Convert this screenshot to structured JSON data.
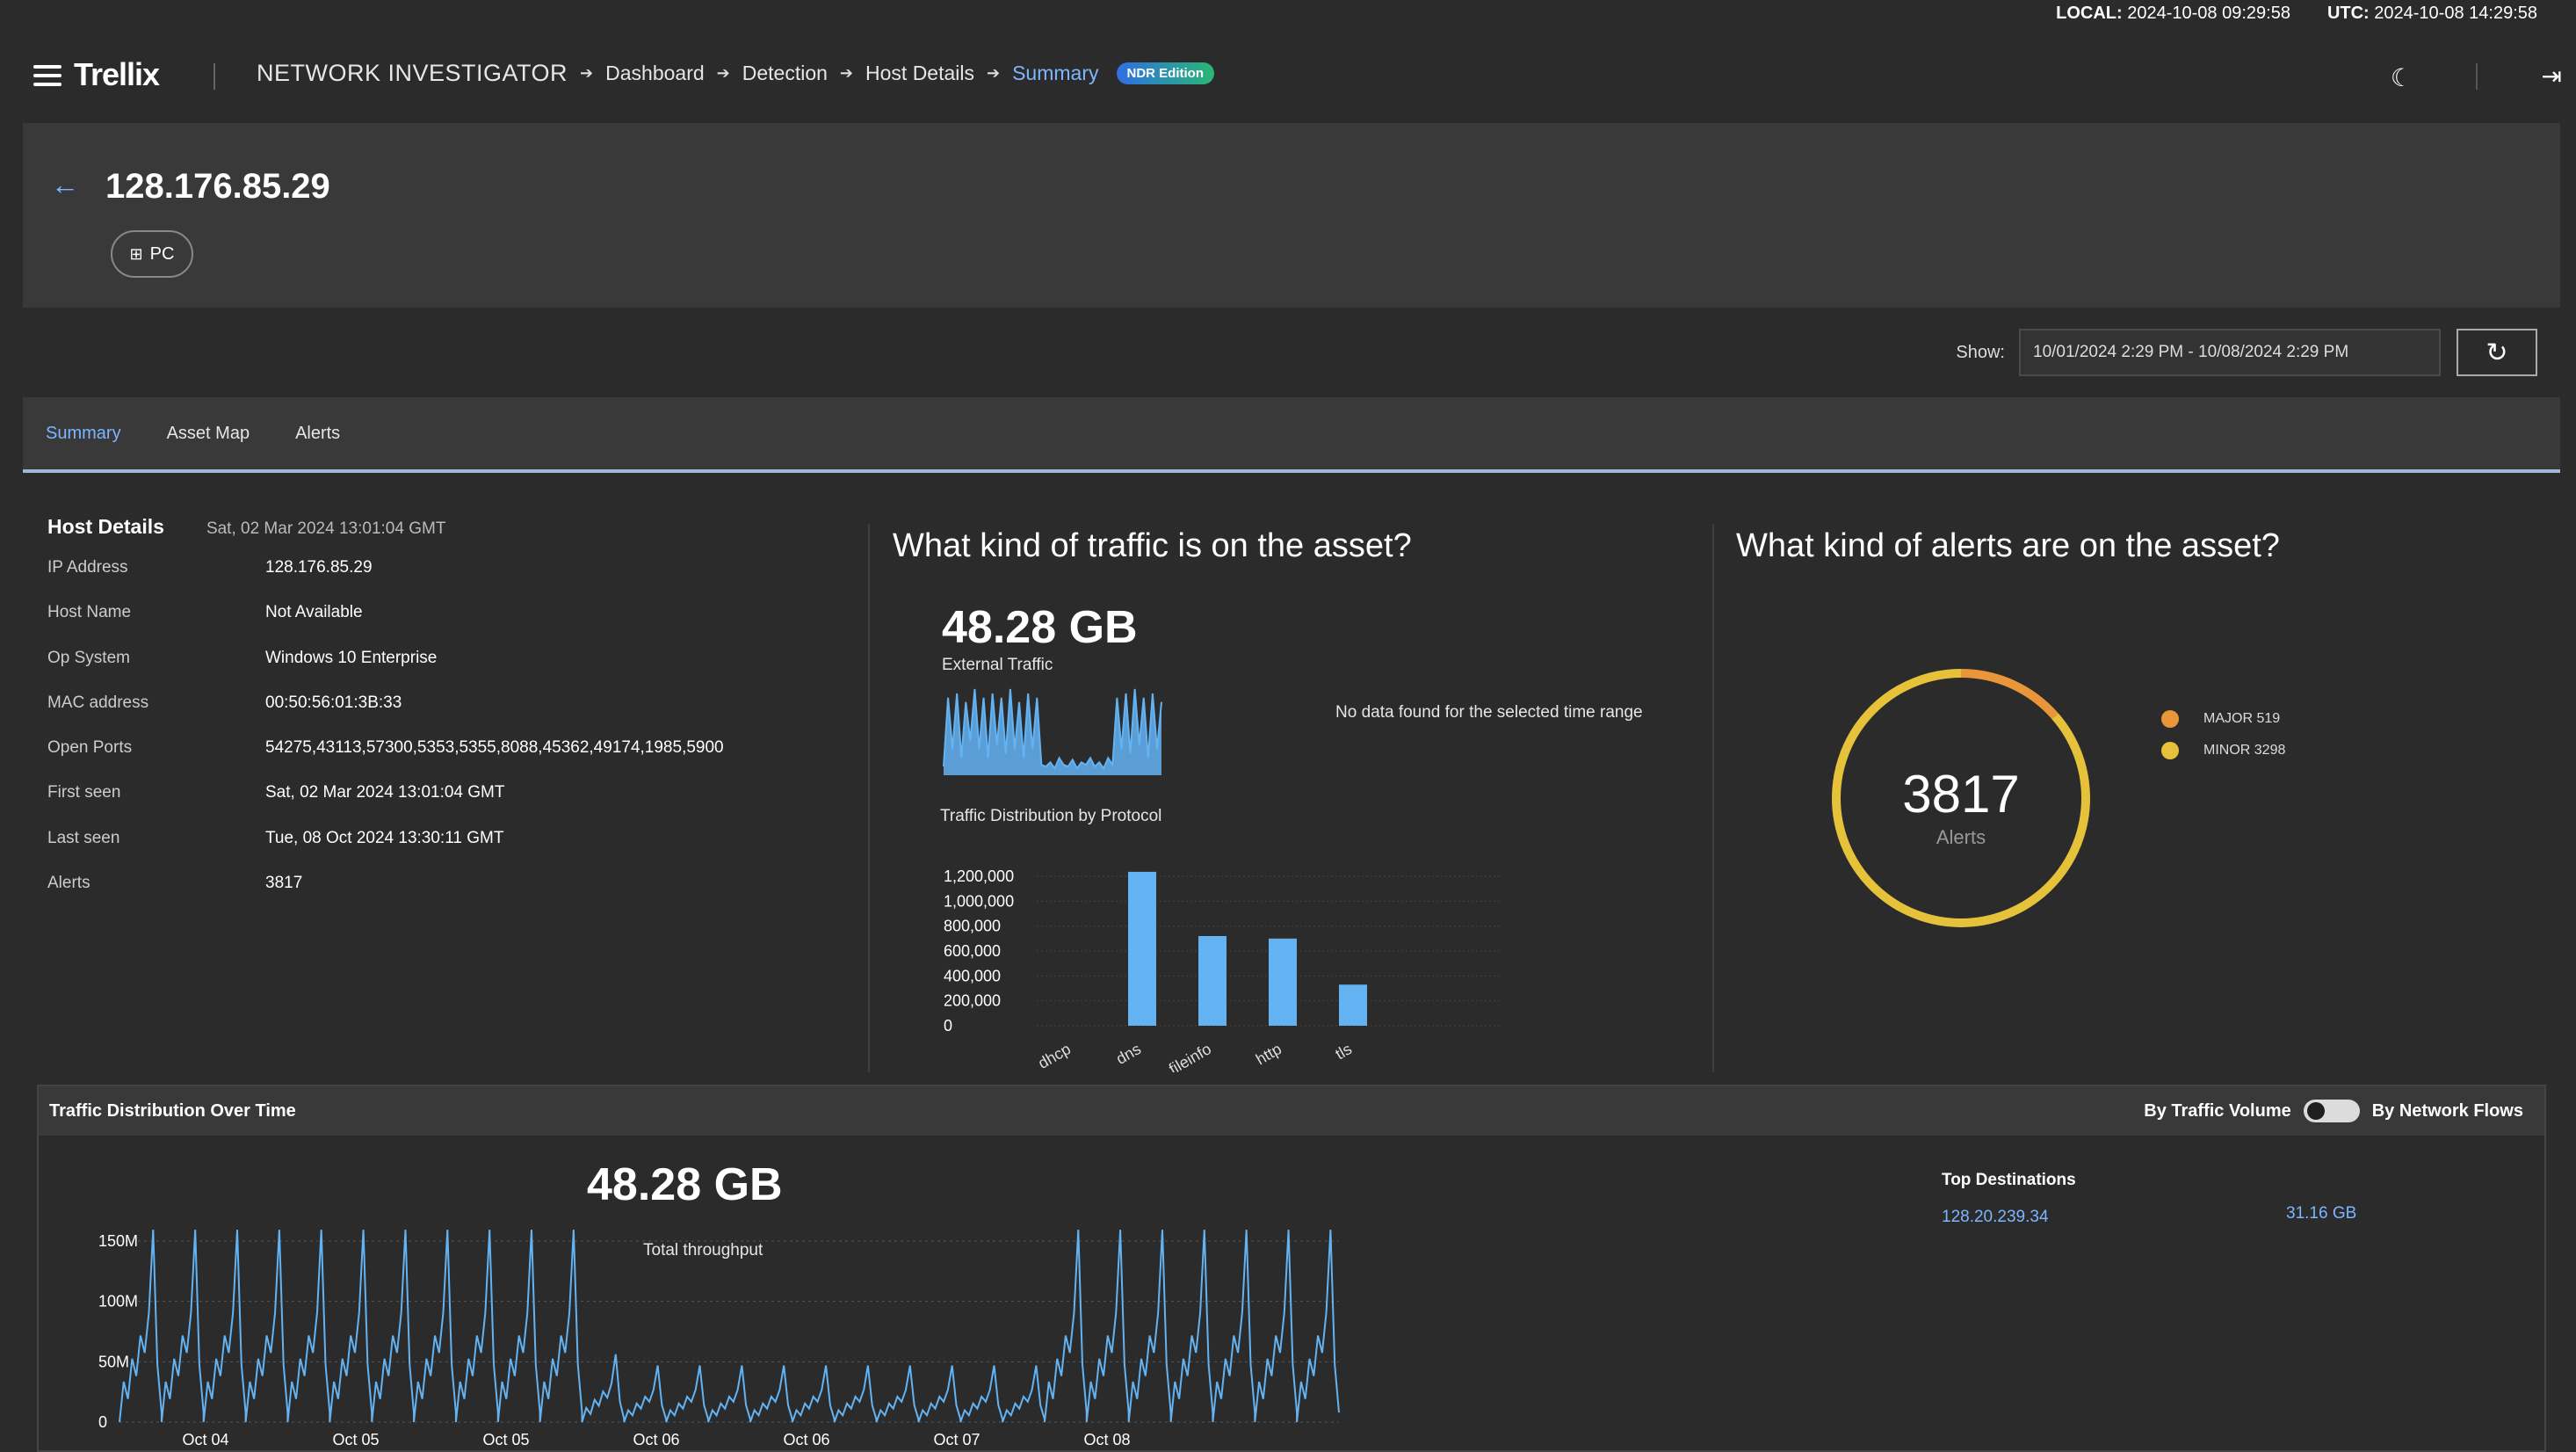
{
  "clock": {
    "local_label": "LOCAL:",
    "local_value": "2024-10-08 09:29:58",
    "utc_label": "UTC:",
    "utc_value": "2024-10-08 14:29:58"
  },
  "header": {
    "logo": "Trellix",
    "app_name": "NETWORK INVESTIGATOR",
    "breadcrumbs": [
      "Dashboard",
      "Detection",
      "Host Details",
      "Summary"
    ],
    "badge": "NDR Edition"
  },
  "host": {
    "ip": "128.176.85.29",
    "type": "PC"
  },
  "show": {
    "label": "Show:",
    "range": "10/01/2024 2:29 PM - 10/08/2024 2:29 PM"
  },
  "tabs": [
    "Summary",
    "Asset Map",
    "Alerts"
  ],
  "details": {
    "title": "Host Details",
    "date": "Sat, 02 Mar 2024 13:01:04 GMT",
    "rows": [
      {
        "k": "IP Address",
        "v": "128.176.85.29"
      },
      {
        "k": "Host Name",
        "v": "Not Available"
      },
      {
        "k": "Op System",
        "v": "Windows 10 Enterprise"
      },
      {
        "k": "MAC address",
        "v": "00:50:56:01:3B:33"
      },
      {
        "k": "Open Ports",
        "v": "54275,43113,57300,5353,5355,8088,45362,49174,1985,5900"
      },
      {
        "k": "First seen",
        "v": "Sat, 02 Mar 2024 13:01:04 GMT"
      },
      {
        "k": "Last seen",
        "v": "Tue, 08 Oct 2024 13:30:11 GMT"
      },
      {
        "k": "Alerts",
        "v": "3817"
      }
    ]
  },
  "traffic": {
    "question": "What kind of traffic is on the asset?",
    "total": "48.28 GB",
    "total_label": "External Traffic",
    "no_data": "No data found for the selected time range",
    "protocol_title": "Traffic Distribution by Protocol"
  },
  "alerts": {
    "question": "What kind of alerts are on the asset?",
    "total": "3817",
    "total_label": "Alerts",
    "legend": [
      {
        "label": "MAJOR 519",
        "color": "#e9963a"
      },
      {
        "label": "MINOR 3298",
        "color": "#e6c23a"
      }
    ]
  },
  "bottom": {
    "title": "Traffic Distribution Over Time",
    "toggle_left": "By Traffic Volume",
    "toggle_right": "By Network Flows",
    "total": "48.28 GB",
    "total_label": "Total throughput",
    "top_dest_title": "Top Destinations",
    "top_destinations": [
      {
        "ip": "128.20.239.34",
        "size": "31.16 GB"
      }
    ]
  },
  "chart_data": [
    {
      "type": "bar",
      "title": "Traffic Distribution by Protocol",
      "categories": [
        "dhcp",
        "dns",
        "fileinfo",
        "http",
        "tls"
      ],
      "values": [
        0,
        1250000,
        720000,
        700000,
        330000
      ],
      "ylim": [
        0,
        1200000
      ],
      "yticks": [
        "1,200,000",
        "1,000,000",
        "800,000",
        "600,000",
        "400,000",
        "200,000",
        "0"
      ],
      "color": "#63b3f3"
    },
    {
      "type": "donut",
      "categories": [
        "MAJOR",
        "MINOR"
      ],
      "values": [
        519,
        3298
      ],
      "colors": [
        "#e9963a",
        "#e6c23a"
      ]
    },
    {
      "type": "area",
      "title": "External Traffic sparkline",
      "values": [
        0.1,
        0.9,
        0.3,
        0.95,
        0.2,
        0.85,
        0.4,
        1,
        0.3,
        0.9,
        0.2,
        0.95,
        0.35,
        0.9,
        0.25,
        1,
        0.3,
        0.85,
        0.2,
        0.95,
        0.3,
        0.9,
        0.12,
        0.1,
        0.15,
        0.08,
        0.2,
        0.12,
        0.1,
        0.18,
        0.08,
        0.15,
        0.12,
        0.2,
        0.1,
        0.15,
        0.08,
        0.2,
        0.12,
        0.9,
        0.3,
        0.95,
        0.25,
        1,
        0.35,
        0.9,
        0.2,
        0.95,
        0.3,
        0.85
      ],
      "color": "#63b3f3"
    },
    {
      "type": "line",
      "title": "Total throughput",
      "x_ticks": [
        "Oct 04",
        "Oct 05",
        "Oct 05",
        "Oct 06",
        "Oct 06",
        "Oct 07",
        "Oct 08"
      ],
      "yticks": [
        "150M",
        "100M",
        "50M",
        "0"
      ],
      "ylim": [
        0,
        160
      ],
      "peaks": [
        170,
        170,
        170,
        170,
        170,
        170,
        170,
        170,
        170,
        170,
        170,
        60,
        50,
        50,
        50,
        50,
        50,
        50,
        50,
        50,
        50,
        50,
        170,
        170,
        170,
        170,
        170,
        170,
        170
      ],
      "color": "#63b3f3"
    }
  ]
}
